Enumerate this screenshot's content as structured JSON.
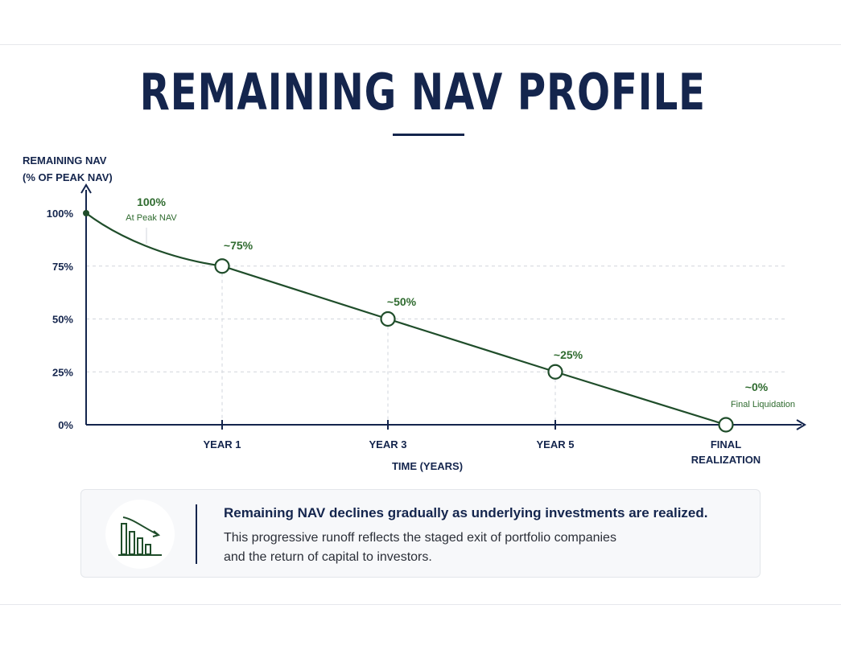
{
  "title": "REMAINING NAV PROFILE",
  "chart_data": {
    "type": "line",
    "ylabel_lines": [
      "REMAINING NAV",
      "(% OF PEAK NAV)"
    ],
    "xlabel": "TIME (YEARS)",
    "ylim": [
      0,
      100
    ],
    "y_ticks": [
      {
        "value": 100,
        "label": "100%"
      },
      {
        "value": 75,
        "label": "75%"
      },
      {
        "value": 50,
        "label": "50%"
      },
      {
        "value": 25,
        "label": "25%"
      },
      {
        "value": 0,
        "label": "0%"
      }
    ],
    "x_ticks": [
      {
        "label": "YEAR 1",
        "lines": [
          "YEAR 1"
        ]
      },
      {
        "label": "YEAR 3",
        "lines": [
          "YEAR 3"
        ]
      },
      {
        "label": "YEAR 5",
        "lines": [
          "YEAR 5"
        ]
      },
      {
        "label": "FINAL REALIZATION",
        "lines": [
          "FINAL",
          "REALIZATION"
        ]
      }
    ],
    "grid": {
      "horizontal_dashed": true,
      "vertical_dashed_at_markers": true
    },
    "series": [
      {
        "points": [
          {
            "x": "Start",
            "y": 100,
            "label": "100%",
            "sublabel": "At Peak NAV"
          },
          {
            "x": "YEAR 1",
            "y": 75,
            "label": "~75%"
          },
          {
            "x": "YEAR 3",
            "y": 50,
            "label": "~50%"
          },
          {
            "x": "YEAR 5",
            "y": 25,
            "label": "~25%"
          },
          {
            "x": "FINAL REALIZATION",
            "y": 0,
            "label": "~0%",
            "sublabel": "Final Liquidation"
          }
        ]
      }
    ]
  },
  "colors": {
    "navy": "#14254d",
    "line_green": "#1f4d2a",
    "label_green": "#2f6b2f",
    "grid": "#d2d6dc"
  },
  "callout": {
    "icon": "declining-bar-chart-icon",
    "headline": "Remaining NAV declines gradually as underlying investments are realized.",
    "body_lines": [
      "This progressive runoff reflects the staged exit of portfolio companies",
      "and the return of capital to investors."
    ]
  }
}
